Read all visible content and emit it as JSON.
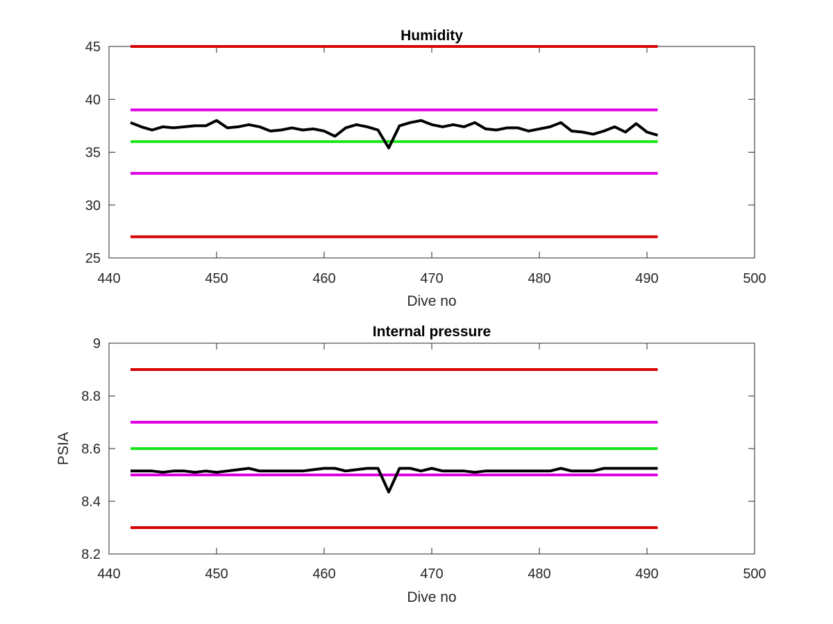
{
  "chart_data": [
    {
      "type": "line",
      "title": "Humidity",
      "xlabel": "Dive no",
      "ylabel": "",
      "xlim": [
        440,
        500
      ],
      "ylim": [
        25,
        45
      ],
      "xticks": [
        "440",
        "450",
        "460",
        "470",
        "480",
        "490",
        "500"
      ],
      "yticks": [
        "25",
        "30",
        "35",
        "40",
        "45"
      ],
      "xtick_values": [
        440,
        450,
        460,
        470,
        480,
        490,
        500
      ],
      "ytick_values": [
        25,
        30,
        35,
        40,
        45
      ],
      "grid": false,
      "reference_lines": [
        {
          "y": 45,
          "x": [
            442,
            491
          ],
          "color": "#d40000"
        },
        {
          "y": 39,
          "x": [
            442,
            491
          ],
          "color": "#e000e0"
        },
        {
          "y": 36,
          "x": [
            442,
            491
          ],
          "color": "#19e619"
        },
        {
          "y": 33,
          "x": [
            442,
            491
          ],
          "color": "#e000e0"
        },
        {
          "y": 27,
          "x": [
            442,
            491
          ],
          "color": "#d40000"
        }
      ],
      "series": [
        {
          "color": "#000000",
          "x": [
            442,
            443,
            444,
            445,
            446,
            447,
            448,
            449,
            450,
            451,
            452,
            453,
            454,
            455,
            456,
            457,
            458,
            459,
            460,
            461,
            462,
            463,
            464,
            465,
            466,
            467,
            468,
            469,
            470,
            471,
            472,
            473,
            474,
            475,
            476,
            477,
            478,
            479,
            480,
            481,
            482,
            483,
            484,
            485,
            486,
            487,
            488,
            489,
            490,
            491
          ],
          "y": [
            37.8,
            37.4,
            37.1,
            37.4,
            37.3,
            37.4,
            37.5,
            37.5,
            38.0,
            37.3,
            37.4,
            37.6,
            37.4,
            37.0,
            37.1,
            37.3,
            37.1,
            37.2,
            37.0,
            36.5,
            37.3,
            37.6,
            37.4,
            37.1,
            35.4,
            37.5,
            37.8,
            38.0,
            37.6,
            37.4,
            37.6,
            37.4,
            37.8,
            37.2,
            37.1,
            37.3,
            37.3,
            37.0,
            37.2,
            37.4,
            37.8,
            37.0,
            36.9,
            36.7,
            37.0,
            37.4,
            36.9,
            37.7,
            36.9,
            36.6
          ]
        }
      ]
    },
    {
      "type": "line",
      "title": "Internal pressure",
      "xlabel": "Dive no",
      "ylabel": "PSIA",
      "xlim": [
        440,
        500
      ],
      "ylim": [
        8.2,
        9.0
      ],
      "xticks": [
        "440",
        "450",
        "460",
        "470",
        "480",
        "490",
        "500"
      ],
      "yticks": [
        "8.2",
        "8.4",
        "8.6",
        "8.8",
        "9"
      ],
      "xtick_values": [
        440,
        450,
        460,
        470,
        480,
        490,
        500
      ],
      "ytick_values": [
        8.2,
        8.4,
        8.6,
        8.8,
        9.0
      ],
      "grid": false,
      "reference_lines": [
        {
          "y": 8.9,
          "x": [
            442,
            491
          ],
          "color": "#d40000"
        },
        {
          "y": 8.7,
          "x": [
            442,
            491
          ],
          "color": "#e000e0"
        },
        {
          "y": 8.6,
          "x": [
            442,
            491
          ],
          "color": "#19e619"
        },
        {
          "y": 8.5,
          "x": [
            442,
            491
          ],
          "color": "#e000e0"
        },
        {
          "y": 8.3,
          "x": [
            442,
            491
          ],
          "color": "#d40000"
        }
      ],
      "series": [
        {
          "color": "#000000",
          "x": [
            442,
            443,
            444,
            445,
            446,
            447,
            448,
            449,
            450,
            451,
            452,
            453,
            454,
            455,
            456,
            457,
            458,
            459,
            460,
            461,
            462,
            463,
            464,
            465,
            466,
            467,
            468,
            469,
            470,
            471,
            472,
            473,
            474,
            475,
            476,
            477,
            478,
            479,
            480,
            481,
            482,
            483,
            484,
            485,
            486,
            487,
            488,
            489,
            490,
            491
          ],
          "y": [
            8.515,
            8.515,
            8.515,
            8.51,
            8.515,
            8.515,
            8.51,
            8.515,
            8.51,
            8.515,
            8.52,
            8.525,
            8.515,
            8.515,
            8.515,
            8.515,
            8.515,
            8.52,
            8.525,
            8.525,
            8.515,
            8.52,
            8.525,
            8.525,
            8.435,
            8.525,
            8.525,
            8.515,
            8.525,
            8.515,
            8.515,
            8.515,
            8.51,
            8.515,
            8.515,
            8.515,
            8.515,
            8.515,
            8.515,
            8.515,
            8.525,
            8.515,
            8.515,
            8.515,
            8.525,
            8.525,
            8.525,
            8.525,
            8.525,
            8.525
          ]
        }
      ]
    }
  ]
}
